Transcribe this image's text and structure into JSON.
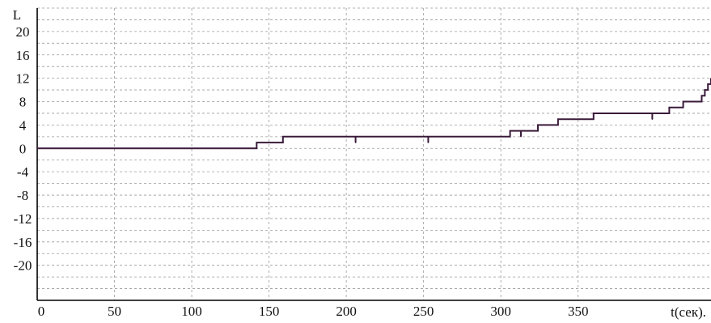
{
  "chart_data": {
    "type": "line",
    "title": "",
    "xlabel": "t(сек).",
    "ylabel": "L",
    "xlim": [
      0,
      436
    ],
    "ylim": [
      -26,
      24
    ],
    "x_ticks": [
      0,
      50,
      100,
      150,
      200,
      250,
      300,
      350
    ],
    "x_tick_labels": [
      "0",
      "50",
      "100",
      "150",
      "200",
      "250",
      "300",
      "350"
    ],
    "y_ticks": [
      20,
      16,
      12,
      8,
      4,
      0,
      -4,
      -8,
      -12,
      -16,
      -20
    ],
    "y_tick_labels": [
      "20",
      "16",
      "12",
      "8",
      "4",
      "0",
      "-4",
      "-8",
      "-12",
      "-16",
      "-20"
    ],
    "grid": true,
    "line_color": "#3a1a3a",
    "series": [
      {
        "x": [
          0,
          142,
          142,
          159,
          159,
          206,
          206,
          206,
          206,
          253,
          253,
          253,
          253,
          306,
          306,
          313,
          313,
          313,
          313,
          324,
          324,
          337,
          337,
          360,
          360,
          398,
          398,
          398,
          398,
          409,
          409,
          418,
          418,
          430,
          430,
          432,
          432,
          434,
          434,
          436,
          436
        ],
        "y": [
          0,
          0,
          1,
          1,
          2,
          2,
          1,
          1,
          2,
          2,
          1,
          1,
          2,
          2,
          3,
          3,
          2,
          2,
          3,
          3,
          4,
          4,
          5,
          5,
          6,
          6,
          5,
          5,
          6,
          6,
          7,
          7,
          8,
          8,
          9,
          9,
          10,
          10,
          11,
          11,
          12
        ]
      }
    ]
  }
}
